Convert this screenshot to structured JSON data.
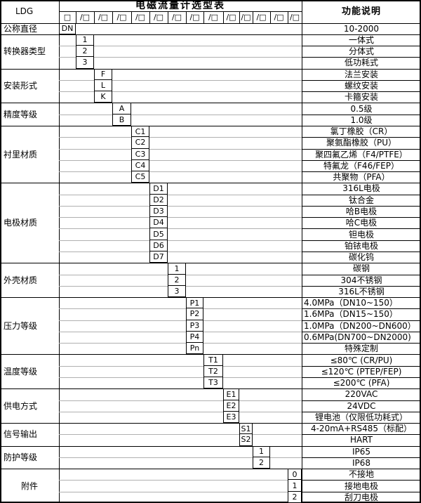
{
  "title": "电磁流量计选型表",
  "right_header": "功能说明",
  "model": {
    "prefix": "LDG",
    "first_box": "□",
    "segment": "/□",
    "segment_count": 13
  },
  "colors": {
    "border": "#000000",
    "gridline": "#b0b0b0",
    "background": "#ffffff"
  },
  "categories": [
    {
      "label": "公称直径",
      "column": 0,
      "rows": [
        {
          "code": "DN",
          "desc": "10-2000"
        }
      ]
    },
    {
      "label": "转换器类型",
      "column": 1,
      "rows": [
        {
          "code": "1",
          "desc": "一体式"
        },
        {
          "code": "2",
          "desc": "分体式"
        },
        {
          "code": "3",
          "desc": "低功耗式"
        }
      ]
    },
    {
      "label": "安装形式",
      "column": 2,
      "rows": [
        {
          "code": "F",
          "desc": "法兰安装"
        },
        {
          "code": "L",
          "desc": "螺纹安装"
        },
        {
          "code": "K",
          "desc": "卡箍安装"
        }
      ]
    },
    {
      "label": "精度等级",
      "column": 3,
      "rows": [
        {
          "code": "A",
          "desc": "0.5级"
        },
        {
          "code": "B",
          "desc": "1.0级"
        }
      ]
    },
    {
      "label": "衬里材质",
      "column": 4,
      "rows": [
        {
          "code": "C1",
          "desc": "氯丁橡胶（CR）"
        },
        {
          "code": "C2",
          "desc": "聚氨酯橡胶（PU）"
        },
        {
          "code": "C3",
          "desc": "聚四氟乙烯（F4/PTFE）"
        },
        {
          "code": "C4",
          "desc": "特氟龙（F46/FEP）"
        },
        {
          "code": "C5",
          "desc": "共聚物（PFA）"
        }
      ]
    },
    {
      "label": "电极材质",
      "column": 5,
      "rows": [
        {
          "code": "D1",
          "desc": "316L电极"
        },
        {
          "code": "D2",
          "desc": "钛合金"
        },
        {
          "code": "D3",
          "desc": "哈B电极"
        },
        {
          "code": "D4",
          "desc": "哈C电极"
        },
        {
          "code": "D5",
          "desc": "钽电极"
        },
        {
          "code": "D6",
          "desc": "铂铱电极"
        },
        {
          "code": "D7",
          "desc": "碳化钨"
        }
      ]
    },
    {
      "label": "外壳材质",
      "column": 6,
      "rows": [
        {
          "code": "1",
          "desc": "碳钢"
        },
        {
          "code": "2",
          "desc": "304不锈钢"
        },
        {
          "code": "3",
          "desc": "316L不锈钢"
        }
      ]
    },
    {
      "label": "压力等级",
      "column": 7,
      "rows": [
        {
          "code": "P1",
          "desc": "4.0MPa（DN10~150）"
        },
        {
          "code": "P2",
          "desc": "1.6MPa（DN15~150）"
        },
        {
          "code": "P3",
          "desc": "1.0MPa（DN200~DN600）"
        },
        {
          "code": "P4",
          "desc": "0.6MPa(DN700~DN2000)"
        },
        {
          "code": "Pn",
          "desc": "特殊定制"
        }
      ]
    },
    {
      "label": "温度等级",
      "column": 8,
      "rows": [
        {
          "code": "T1",
          "desc": "≤80℃ (CR/PU)"
        },
        {
          "code": "T2",
          "desc": "≤120℃ (PTEP/FEP)"
        },
        {
          "code": "T3",
          "desc": "≤200℃ (PFA)"
        }
      ]
    },
    {
      "label": "供电方式",
      "column": 9,
      "rows": [
        {
          "code": "E1",
          "desc": "220VAC"
        },
        {
          "code": "E2",
          "desc": "24VDC"
        },
        {
          "code": "E3",
          "desc": "锂电池（仅限低功耗式）"
        }
      ]
    },
    {
      "label": "信号输出",
      "column": 10,
      "rows": [
        {
          "code": "S1",
          "desc": "4-20mA+RS485（标配）"
        },
        {
          "code": "S2",
          "desc": "HART"
        }
      ]
    },
    {
      "label": "防护等级",
      "column": 11,
      "rows": [
        {
          "code": "1",
          "desc": "IP65"
        },
        {
          "code": "2",
          "desc": "IP68"
        }
      ]
    },
    {
      "label": "附件",
      "column": 13,
      "rows": [
        {
          "code": "0",
          "desc": "不接地"
        },
        {
          "code": "1",
          "desc": "接地电极"
        },
        {
          "code": "2",
          "desc": "刮刀电极"
        }
      ]
    }
  ]
}
